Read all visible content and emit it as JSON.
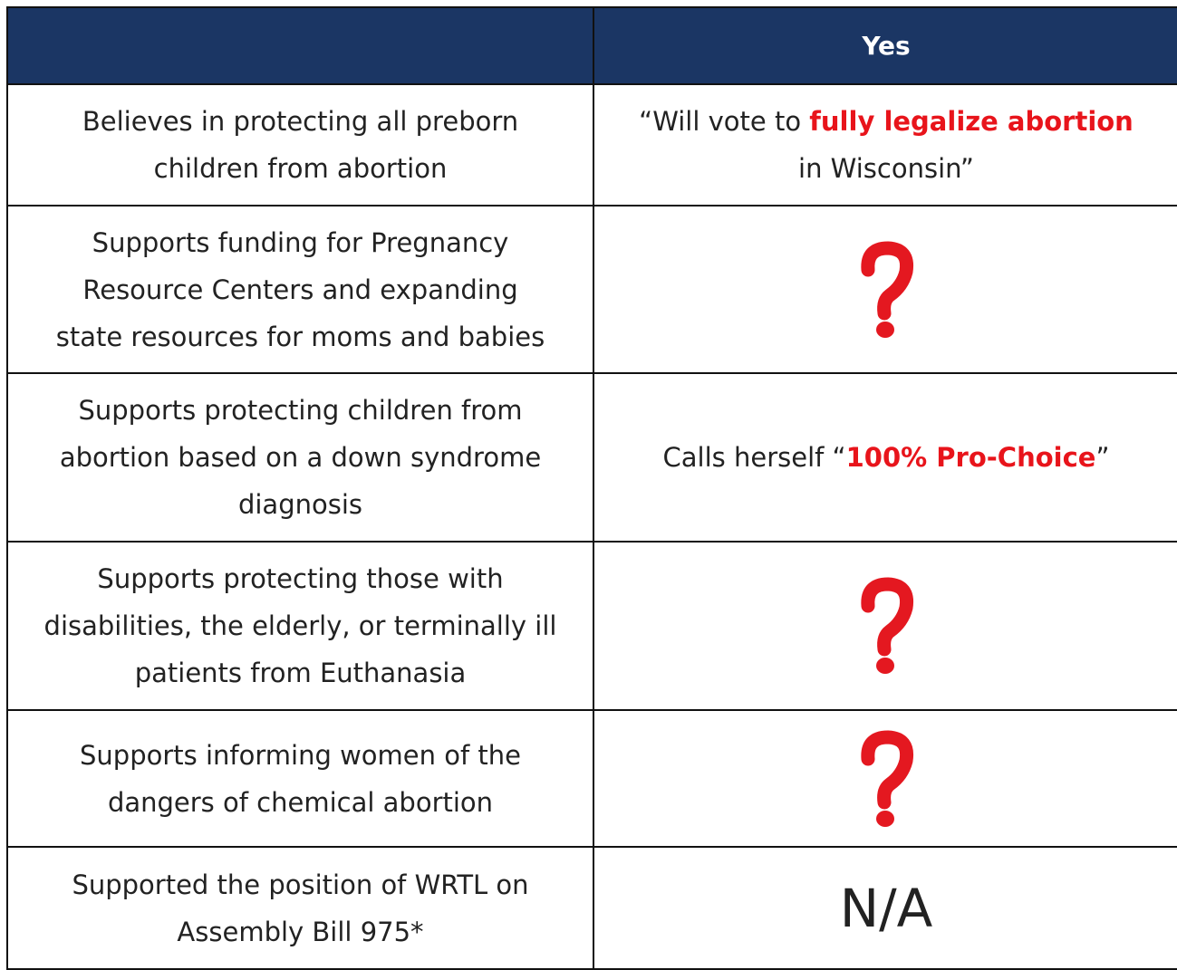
{
  "table": {
    "header": [
      "",
      "Yes"
    ],
    "rows": [
      {
        "left": [
          "Believes in protecting all preborn",
          "children from abortion"
        ],
        "right": [
          [
            {
              "text": "“Will vote to "
            },
            {
              "text": "fully legalize abortion",
              "emphasis": true
            }
          ],
          [
            {
              "text": "in Wisconsin”"
            }
          ]
        ]
      },
      {
        "left": [
          "Supports funding for Pregnancy",
          "Resource Centers and expanding",
          "state resources for moms and babies"
        ]
      },
      {
        "left": [
          "Supports protecting children from",
          "abortion based on a down syndrome",
          "diagnosis"
        ],
        "right": [
          [
            {
              "text": "Calls herself “"
            },
            {
              "text": "100% Pro-Choice",
              "emphasis": true
            },
            {
              "text": "”"
            }
          ]
        ]
      },
      {
        "left": [
          "Supports protecting those with",
          "disabilities, the elderly, or terminally ill",
          "patients from Euthanasia"
        ]
      },
      {
        "left": [
          "Supports informing women of the",
          "dangers of chemical abortion"
        ]
      },
      {
        "left": [
          "Supported the position of WRTL on",
          "Assembly Bill 975*"
        ],
        "right": [
          [
            {
              "text": "N/A"
            }
          ]
        ],
        "right_large": true
      }
    ]
  }
}
